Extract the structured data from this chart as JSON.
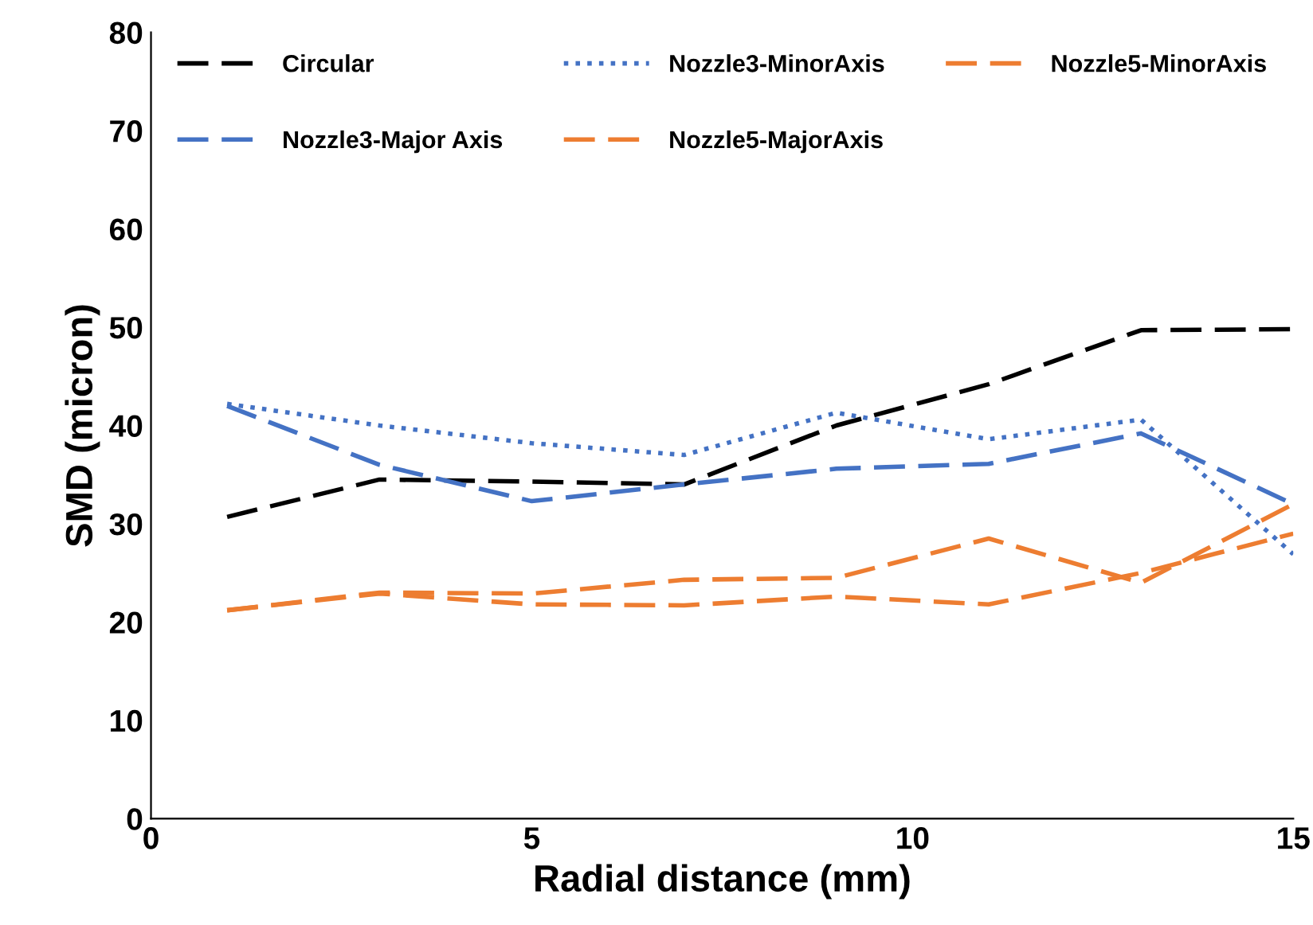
{
  "chart_data": {
    "type": "line",
    "xlabel": "Radial distance (mm)",
    "ylabel": "SMD (micron)",
    "x": [
      1,
      3,
      5,
      7,
      9,
      11,
      13,
      15
    ],
    "series": [
      {
        "name": "Circular",
        "color": "#000000",
        "line_style": "dashed",
        "values": [
          30.7,
          34.5,
          34.3,
          34,
          40,
          44.2,
          49.7,
          49.8
        ]
      },
      {
        "name": "Nozzle3-Major Axis",
        "color": "#4472c4",
        "line_style": "dashed",
        "values": [
          42,
          36,
          32.3,
          34,
          35.6,
          36.1,
          39.2,
          32
        ]
      },
      {
        "name": "Nozzle3-MinorAxis",
        "color": "#4472c4",
        "line_style": "dotted",
        "values": [
          42.2,
          40,
          38.2,
          37,
          41.3,
          38.6,
          40.6,
          26.9
        ]
      },
      {
        "name": "Nozzle5-MajorAxis",
        "color": "#ed7d31",
        "line_style": "dashed",
        "values": [
          21.2,
          23,
          22.9,
          24.3,
          24.5,
          28.5,
          24,
          32
        ]
      },
      {
        "name": "Nozzle5-MinorAxis",
        "color": "#ed7d31",
        "line_style": "dashed",
        "values": [
          21.2,
          22.9,
          21.8,
          21.7,
          22.6,
          21.8,
          25,
          29
        ]
      }
    ],
    "xlim": [
      0,
      15
    ],
    "xticks": [
      0,
      5,
      10,
      15
    ],
    "ylim": [
      0,
      80
    ],
    "yticks": [
      0,
      10,
      20,
      30,
      40,
      50,
      60,
      70,
      80
    ],
    "grid": false,
    "legend": "top",
    "marker": "none"
  }
}
